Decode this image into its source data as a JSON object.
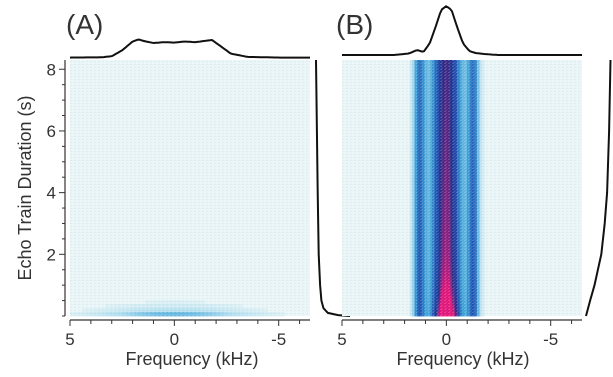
{
  "figure": {
    "ylabel": "Echo Train Duration (s)",
    "xlabel": "Frequency (kHz)"
  },
  "chart_data": [
    {
      "type": "heatmap",
      "panel_label": "(A)",
      "xlabel": "Frequency (kHz)",
      "ylabel": "Echo Train Duration (s)",
      "x_reversed": true,
      "xlim": [
        5,
        -6.5
      ],
      "ylim": [
        0,
        8.3
      ],
      "x_ticks": [
        5,
        0,
        -5
      ],
      "x_tick_labels": [
        "5",
        "0",
        "-5"
      ],
      "y_ticks": [
        2,
        4,
        6,
        8
      ],
      "y_tick_labels": [
        "2",
        "4",
        "6",
        "8"
      ],
      "colormap": [
        "#e9f5f6",
        "#aedcef",
        "#3ea2d8",
        "#1f52b3",
        "#262b87",
        "#e3157a"
      ],
      "top_spectrum": {
        "x": [
          5,
          3.5,
          3,
          2.5,
          2,
          1.7,
          1.5,
          1,
          0.5,
          0,
          -0.5,
          -1,
          -1.5,
          -1.8,
          -2.2,
          -2.7,
          -3.5,
          -5,
          -6.5
        ],
        "y": [
          0.02,
          0.03,
          0.08,
          0.35,
          0.75,
          0.85,
          0.78,
          0.68,
          0.72,
          0.7,
          0.75,
          0.72,
          0.78,
          0.82,
          0.55,
          0.2,
          0.05,
          0.02,
          0.02
        ]
      },
      "right_decay": {
        "t": [
          8.3,
          4,
          2,
          1,
          0.5,
          0.25,
          0.1,
          0.03,
          0
        ],
        "amplitude": [
          0.0,
          0.05,
          0.08,
          0.12,
          0.16,
          0.22,
          0.35,
          0.65,
          1.0
        ]
      },
      "heat_components": [
        {
          "center_khz": 0.0,
          "width_khz": 2.6,
          "decay_s": 0.2,
          "amplitude": 0.45
        }
      ]
    },
    {
      "type": "heatmap",
      "panel_label": "(B)",
      "xlabel": "Frequency (kHz)",
      "x_reversed": true,
      "xlim": [
        5,
        -6.5
      ],
      "ylim": [
        0,
        8.3
      ],
      "x_ticks": [
        5,
        0,
        -5
      ],
      "x_tick_labels": [
        "5",
        "0",
        "-5"
      ],
      "colormap": [
        "#e9f5f6",
        "#aedcef",
        "#3ea2d8",
        "#1f52b3",
        "#262b87",
        "#e3157a"
      ],
      "top_spectrum": {
        "x": [
          5,
          2.5,
          1.8,
          1.4,
          1.1,
          0.8,
          0.5,
          0.25,
          0,
          -0.25,
          -0.5,
          -0.8,
          -1.1,
          -1.4,
          -1.8,
          -2.5,
          -6.5
        ],
        "y": [
          0.02,
          0.02,
          0.05,
          0.12,
          0.08,
          0.25,
          0.6,
          0.92,
          1.0,
          0.92,
          0.6,
          0.25,
          0.1,
          0.06,
          0.04,
          0.02,
          0.02
        ]
      },
      "right_decay": {
        "t": [
          8.3,
          6,
          4,
          3,
          2,
          1.5,
          1,
          0.5,
          0
        ],
        "amplitude": [
          0.72,
          0.68,
          0.62,
          0.55,
          0.45,
          0.35,
          0.25,
          0.12,
          0.0
        ]
      },
      "heat_components": [
        {
          "center_khz": 0.0,
          "width_khz": 0.55,
          "decay_s": 60,
          "amplitude": 0.95
        },
        {
          "center_khz": 1.3,
          "width_khz": 0.22,
          "decay_s": 60,
          "amplitude": 0.55
        },
        {
          "center_khz": -1.3,
          "width_khz": 0.22,
          "decay_s": 60,
          "amplitude": 0.55
        },
        {
          "center_khz": 0.0,
          "width_khz": 0.4,
          "decay_s": 0.6,
          "amplitude": 0.35
        }
      ]
    }
  ]
}
